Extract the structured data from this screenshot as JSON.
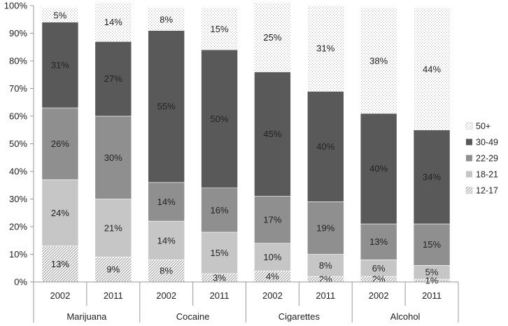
{
  "chart_data": {
    "type": "bar",
    "stacked": true,
    "percent_stacked": true,
    "title": "",
    "xlabel": "",
    "ylabel": "",
    "ylim": [
      0,
      100
    ],
    "y_ticks": [
      "0%",
      "10%",
      "20%",
      "30%",
      "40%",
      "50%",
      "60%",
      "70%",
      "80%",
      "90%",
      "100%"
    ],
    "grid": false,
    "legend_position": "right",
    "groups": [
      {
        "label": "Marijuana",
        "bars": [
          "2002",
          "2011"
        ]
      },
      {
        "label": "Cocaine",
        "bars": [
          "2002",
          "2011"
        ]
      },
      {
        "label": "Cigarettes",
        "bars": [
          "2002",
          "2011"
        ]
      },
      {
        "label": "Alcohol",
        "bars": [
          "2002",
          "2011"
        ]
      }
    ],
    "categories": [
      "Marijuana 2002",
      "Marijuana 2011",
      "Cocaine 2002",
      "Cocaine 2011",
      "Cigarettes 2002",
      "Cigarettes 2011",
      "Alcohol 2002",
      "Alcohol 2011"
    ],
    "series": [
      {
        "name": "12-17",
        "pattern": "diagonal-hatch",
        "color": "#c9c9c9",
        "values": [
          13,
          9,
          8,
          3,
          4,
          2,
          2,
          1
        ],
        "labels": [
          "13%",
          "9%",
          "8%",
          "3%",
          "4%",
          "2%",
          "2%",
          "1%"
        ]
      },
      {
        "name": "18-21",
        "color": "#c6c6c6",
        "values": [
          24,
          21,
          14,
          15,
          10,
          8,
          6,
          5
        ],
        "labels": [
          "24%",
          "21%",
          "14%",
          "15%",
          "10%",
          "8%",
          "6%",
          "5%"
        ]
      },
      {
        "name": "22-29",
        "color": "#8f8f8f",
        "values": [
          26,
          30,
          14,
          16,
          17,
          19,
          13,
          15
        ],
        "labels": [
          "26%",
          "30%",
          "14%",
          "16%",
          "17%",
          "19%",
          "13%",
          "15%"
        ]
      },
      {
        "name": "30-49",
        "color": "#595959",
        "values": [
          31,
          27,
          55,
          50,
          45,
          40,
          40,
          34
        ],
        "labels": [
          "31%",
          "27%",
          "55%",
          "50%",
          "45%",
          "40%",
          "40%",
          "34%"
        ]
      },
      {
        "name": "50+",
        "pattern": "dots",
        "color": "#f2f2f2",
        "values": [
          5,
          14,
          8,
          15,
          25,
          31,
          38,
          44
        ],
        "labels": [
          "5%",
          "14%",
          "8%",
          "15%",
          "25%",
          "31%",
          "38%",
          "44%"
        ]
      }
    ]
  }
}
